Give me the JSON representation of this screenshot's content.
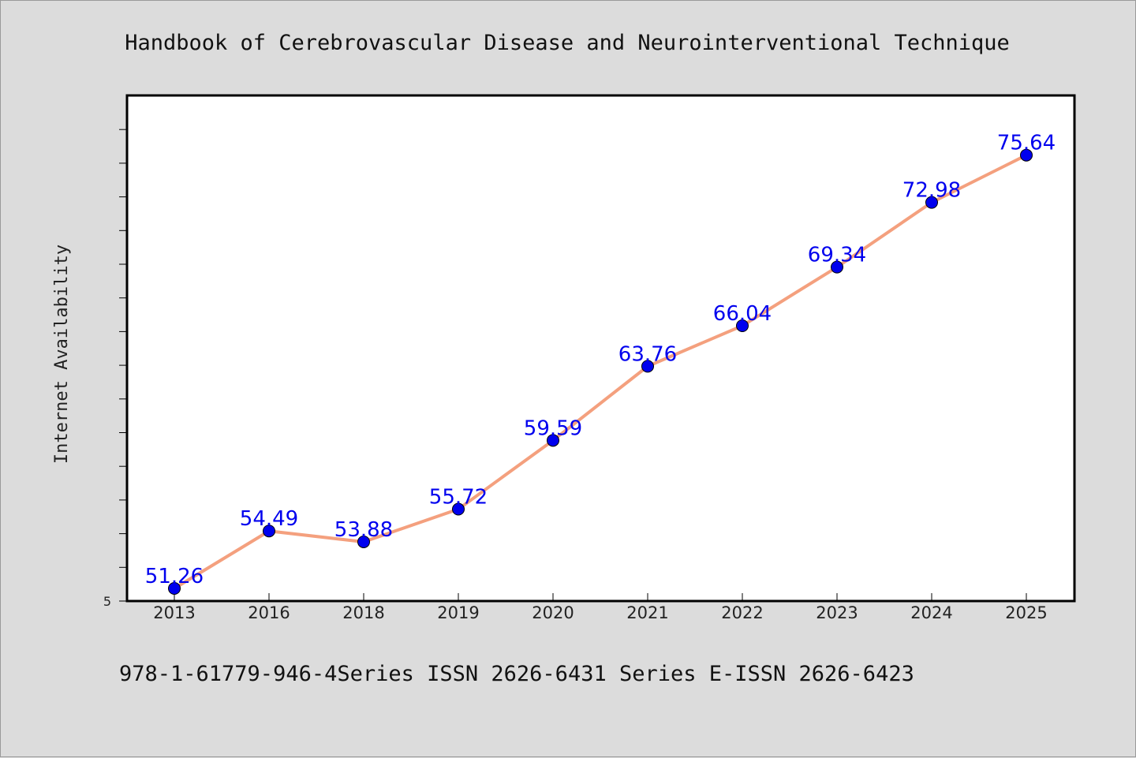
{
  "chart_data": {
    "type": "line",
    "title": "Handbook of Cerebrovascular Disease and Neurointerventional Technique",
    "xlabel": "",
    "ylabel": "Internet Availability",
    "categories": [
      "2013",
      "2016",
      "2018",
      "2019",
      "2020",
      "2021",
      "2022",
      "2023",
      "2024",
      "2025"
    ],
    "series": [
      {
        "values": [
          51.26,
          54.49,
          53.88,
          55.72,
          59.59,
          63.76,
          66.04,
          69.34,
          72.98,
          75.64
        ],
        "labels": [
          "51.26",
          "54.49",
          "53.88",
          "55.72",
          "59.59",
          "63.76",
          "66.04",
          "69.34",
          "72.98",
          "75.64"
        ],
        "line_color": "#f4a07e",
        "marker_color": "#0000ee",
        "label_color": "#0000ee"
      }
    ],
    "ylim": [
      50.55,
      79.0
    ],
    "y_tick_labels": [
      "5"
    ],
    "grid": false,
    "legend": "none"
  },
  "footer": {
    "text": "978-1-61779-946-4Series ISSN 2626-6431 Series E-ISSN 2626-6423"
  }
}
